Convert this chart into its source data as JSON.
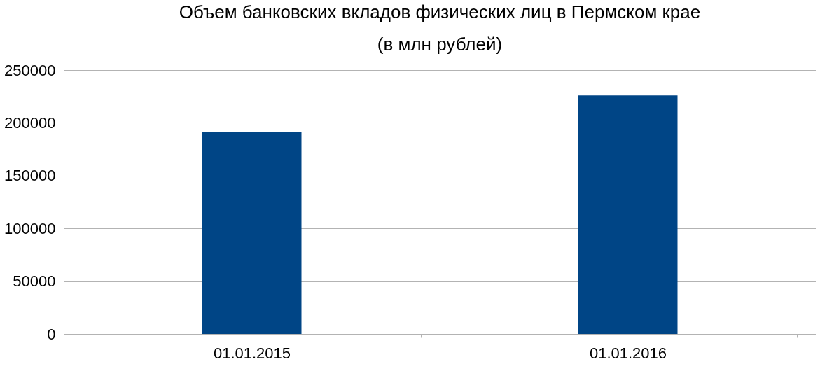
{
  "chart_data": {
    "type": "bar",
    "title": "Объем банковских вкладов физических лиц в Пермском крае",
    "subtitle": "(в млн рублей)",
    "categories": [
      "01.01.2015",
      "01.01.2016"
    ],
    "values": [
      191000,
      226000
    ],
    "color": "#004586",
    "ylim": [
      0,
      250000
    ],
    "yticks": [
      0,
      50000,
      100000,
      150000,
      200000,
      250000
    ],
    "grid": "y"
  }
}
